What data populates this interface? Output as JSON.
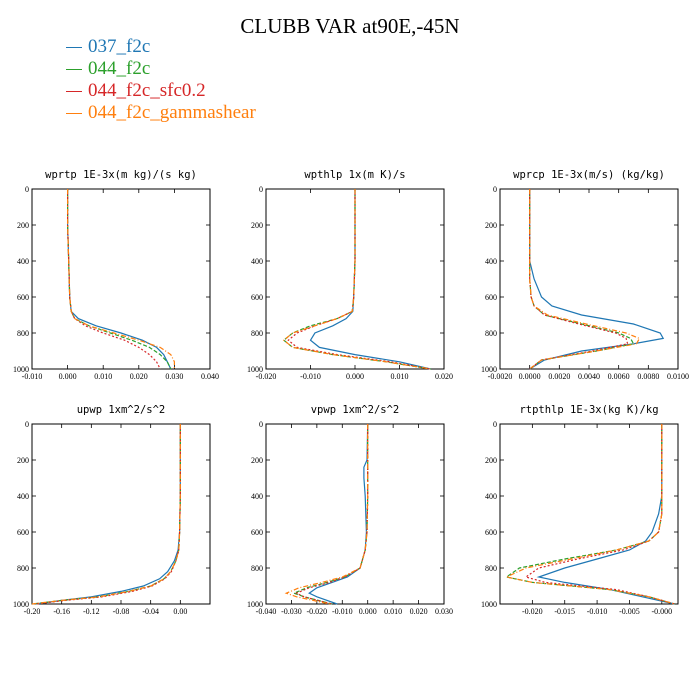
{
  "title": "CLUBB VAR at90E,-45N",
  "legend": [
    {
      "label": "037_f2c",
      "color": "#1f77b4",
      "dash": "none"
    },
    {
      "label": "044_f2c",
      "color": "#2ca02c",
      "dash": "4 2"
    },
    {
      "label": "044_f2c_sfc0.2",
      "color": "#d62728",
      "dash": "2 2"
    },
    {
      "label": "044_f2c_gammashear",
      "color": "#ff7f0e",
      "dash": "5 2 1 2"
    }
  ],
  "chart_data": [
    {
      "type": "line",
      "title": "wprtp  1E-3x(m kg)/(s kg)",
      "xlim": [
        -0.01,
        0.04
      ],
      "ylim": [
        1000,
        0
      ],
      "xticks": [
        "-0.010",
        "0.000",
        "0.010",
        "0.020",
        "0.030",
        "0.040"
      ],
      "yticks": [
        "0",
        "200",
        "400",
        "600",
        "800",
        "1000"
      ],
      "y": [
        0,
        200,
        400,
        600,
        680,
        720,
        760,
        800,
        840,
        880,
        920,
        960,
        1000
      ],
      "series": [
        {
          "values": [
            0.0,
            0.0,
            0.0003,
            0.0006,
            0.001,
            0.003,
            0.008,
            0.015,
            0.021,
            0.025,
            0.027,
            0.028,
            0.029
          ]
        },
        {
          "values": [
            0.0,
            0.0,
            0.0003,
            0.0006,
            0.001,
            0.002,
            0.006,
            0.012,
            0.018,
            0.023,
            0.026,
            0.028,
            0.029
          ]
        },
        {
          "values": [
            0.0,
            0.0,
            0.0003,
            0.0006,
            0.001,
            0.002,
            0.005,
            0.01,
            0.016,
            0.02,
            0.023,
            0.025,
            0.026
          ]
        },
        {
          "values": [
            0.0,
            0.0,
            0.0003,
            0.0006,
            0.001,
            0.002,
            0.006,
            0.013,
            0.02,
            0.026,
            0.029,
            0.03,
            0.03
          ]
        }
      ]
    },
    {
      "type": "line",
      "title": "wpthlp  1x(m K)/s",
      "xlim": [
        -0.02,
        0.02
      ],
      "ylim": [
        1000,
        0
      ],
      "xticks": [
        "-0.020",
        "-0.010",
        "0.000",
        "0.010",
        "0.020"
      ],
      "yticks": [
        "0",
        "200",
        "400",
        "600",
        "800",
        "1000"
      ],
      "y": [
        0,
        200,
        400,
        600,
        680,
        720,
        760,
        800,
        840,
        880,
        920,
        960,
        1000
      ],
      "series": [
        {
          "values": [
            0.0,
            0.0,
            0.0,
            -0.0003,
            -0.0005,
            -0.002,
            -0.005,
            -0.009,
            -0.01,
            -0.008,
            0.0,
            0.01,
            0.017
          ]
        },
        {
          "values": [
            0.0,
            0.0,
            0.0,
            -0.0003,
            -0.0006,
            -0.004,
            -0.01,
            -0.014,
            -0.016,
            -0.014,
            -0.005,
            0.007,
            0.017
          ]
        },
        {
          "values": [
            0.0,
            0.0,
            0.0,
            -0.0003,
            -0.0006,
            -0.004,
            -0.009,
            -0.013,
            -0.015,
            -0.013,
            -0.004,
            0.008,
            0.017
          ]
        },
        {
          "values": [
            0.0,
            0.0,
            0.0,
            -0.0003,
            -0.0006,
            -0.004,
            -0.009,
            -0.014,
            -0.016,
            -0.014,
            -0.005,
            0.007,
            0.017
          ]
        }
      ]
    },
    {
      "type": "line",
      "title": "wprcp  1E-3x(m/s) (kg/kg)",
      "xlim": [
        -0.002,
        0.01
      ],
      "ylim": [
        1000,
        0
      ],
      "xticks": [
        "-0.0020",
        "0.0000",
        "0.0020",
        "0.0040",
        "0.0060",
        "0.0080",
        "0.0100"
      ],
      "yticks": [
        "0",
        "200",
        "400",
        "600",
        "800",
        "1000"
      ],
      "y": [
        0,
        400,
        500,
        600,
        650,
        700,
        750,
        800,
        830,
        860,
        900,
        950,
        1000
      ],
      "series": [
        {
          "values": [
            0.0,
            0.0,
            0.0003,
            0.0008,
            0.0015,
            0.0035,
            0.007,
            0.0088,
            0.009,
            0.007,
            0.0035,
            0.001,
            0.0
          ]
        },
        {
          "values": [
            0.0,
            0.0,
            0.0,
            0.0001,
            0.0003,
            0.001,
            0.0035,
            0.006,
            0.0068,
            0.007,
            0.0045,
            0.0008,
            0.0
          ]
        },
        {
          "values": [
            0.0,
            0.0,
            0.0,
            0.0001,
            0.0003,
            0.001,
            0.0033,
            0.0058,
            0.0065,
            0.0066,
            0.0042,
            0.0008,
            0.0
          ]
        },
        {
          "values": [
            0.0,
            0.0,
            0.0,
            0.0001,
            0.0003,
            0.0012,
            0.0038,
            0.0065,
            0.0074,
            0.0072,
            0.0045,
            0.0008,
            0.0
          ]
        }
      ]
    },
    {
      "type": "line",
      "title": "upwp  1xm^2/s^2",
      "xlim": [
        -0.2,
        0.04
      ],
      "ylim": [
        1000,
        0
      ],
      "xticks": [
        "-0.20",
        "-0.16",
        "-0.12",
        "-0.08",
        "-0.04",
        "0.00"
      ],
      "yticks": [
        "0",
        "200",
        "400",
        "600",
        "800",
        "1000"
      ],
      "y": [
        0,
        200,
        400,
        600,
        700,
        760,
        820,
        860,
        900,
        930,
        960,
        980,
        1000
      ],
      "series": [
        {
          "values": [
            0.0,
            0.0,
            0.0,
            -0.001,
            -0.003,
            -0.008,
            -0.017,
            -0.028,
            -0.05,
            -0.08,
            -0.12,
            -0.16,
            -0.195
          ]
        },
        {
          "values": [
            0.0,
            0.0,
            0.0,
            -0.001,
            -0.002,
            -0.006,
            -0.013,
            -0.022,
            -0.04,
            -0.07,
            -0.11,
            -0.16,
            -0.2
          ]
        },
        {
          "values": [
            0.0,
            0.0,
            0.0,
            -0.001,
            -0.002,
            -0.006,
            -0.012,
            -0.021,
            -0.038,
            -0.065,
            -0.105,
            -0.155,
            -0.195
          ]
        },
        {
          "values": [
            0.0,
            0.0,
            0.0,
            -0.001,
            -0.002,
            -0.006,
            -0.013,
            -0.022,
            -0.04,
            -0.07,
            -0.11,
            -0.16,
            -0.2
          ]
        }
      ]
    },
    {
      "type": "line",
      "title": "vpwp  1xm^2/s^2",
      "xlim": [
        -0.04,
        0.03
      ],
      "ylim": [
        1000,
        0
      ],
      "xticks": [
        "-0.040",
        "-0.030",
        "-0.020",
        "-0.010",
        "0.000",
        "0.010",
        "0.020",
        "0.030"
      ],
      "yticks": [
        "0",
        "200",
        "400",
        "600",
        "800",
        "1000"
      ],
      "y": [
        0,
        200,
        240,
        300,
        400,
        600,
        700,
        800,
        850,
        880,
        910,
        940,
        960,
        1000
      ],
      "series": [
        {
          "values": [
            0.0,
            -0.0003,
            -0.0015,
            -0.0015,
            -0.001,
            -0.0005,
            -0.001,
            -0.003,
            -0.008,
            -0.014,
            -0.02,
            -0.023,
            -0.02,
            -0.012
          ]
        },
        {
          "values": [
            0.0,
            0.0,
            0.0,
            0.0,
            0.0,
            -0.0003,
            -0.001,
            -0.003,
            -0.009,
            -0.016,
            -0.024,
            -0.029,
            -0.025,
            -0.014
          ]
        },
        {
          "values": [
            0.0,
            0.0,
            0.0,
            0.0,
            0.0,
            -0.0003,
            -0.001,
            -0.003,
            -0.009,
            -0.015,
            -0.023,
            -0.028,
            -0.025,
            -0.014
          ]
        },
        {
          "values": [
            0.0,
            0.0,
            0.0,
            0.0,
            0.0,
            -0.0003,
            -0.001,
            -0.003,
            -0.01,
            -0.018,
            -0.027,
            -0.032,
            -0.028,
            -0.015
          ]
        }
      ]
    },
    {
      "type": "line",
      "title": "rtpthlp  1E-3x(kg K)/kg",
      "xlim": [
        -0.025,
        0.0025
      ],
      "ylim": [
        1000,
        0
      ],
      "xticks": [
        "-0.020",
        "-0.015",
        "-0.010",
        "-0.005",
        "-0.000"
      ],
      "yticks": [
        "0",
        "200",
        "400",
        "600",
        "800",
        "1000"
      ],
      "y": [
        0,
        200,
        400,
        500,
        600,
        650,
        700,
        750,
        800,
        850,
        880,
        920,
        960,
        1000
      ],
      "series": [
        {
          "values": [
            0.0,
            0.0,
            0.0,
            -0.0005,
            -0.0015,
            -0.0025,
            -0.005,
            -0.01,
            -0.015,
            -0.019,
            -0.015,
            -0.008,
            -0.003,
            0.002
          ]
        },
        {
          "values": [
            0.0,
            0.0,
            0.0,
            0.0,
            -0.0005,
            -0.002,
            -0.007,
            -0.015,
            -0.022,
            -0.024,
            -0.02,
            -0.008,
            -0.002,
            0.002
          ]
        },
        {
          "values": [
            0.0,
            0.0,
            0.0,
            0.0,
            -0.0005,
            -0.002,
            -0.006,
            -0.013,
            -0.019,
            -0.021,
            -0.018,
            -0.007,
            -0.002,
            0.002
          ]
        },
        {
          "values": [
            0.0,
            0.0,
            0.0,
            0.0,
            -0.0005,
            -0.002,
            -0.007,
            -0.014,
            -0.021,
            -0.024,
            -0.02,
            -0.008,
            -0.002,
            0.002
          ]
        }
      ]
    }
  ]
}
